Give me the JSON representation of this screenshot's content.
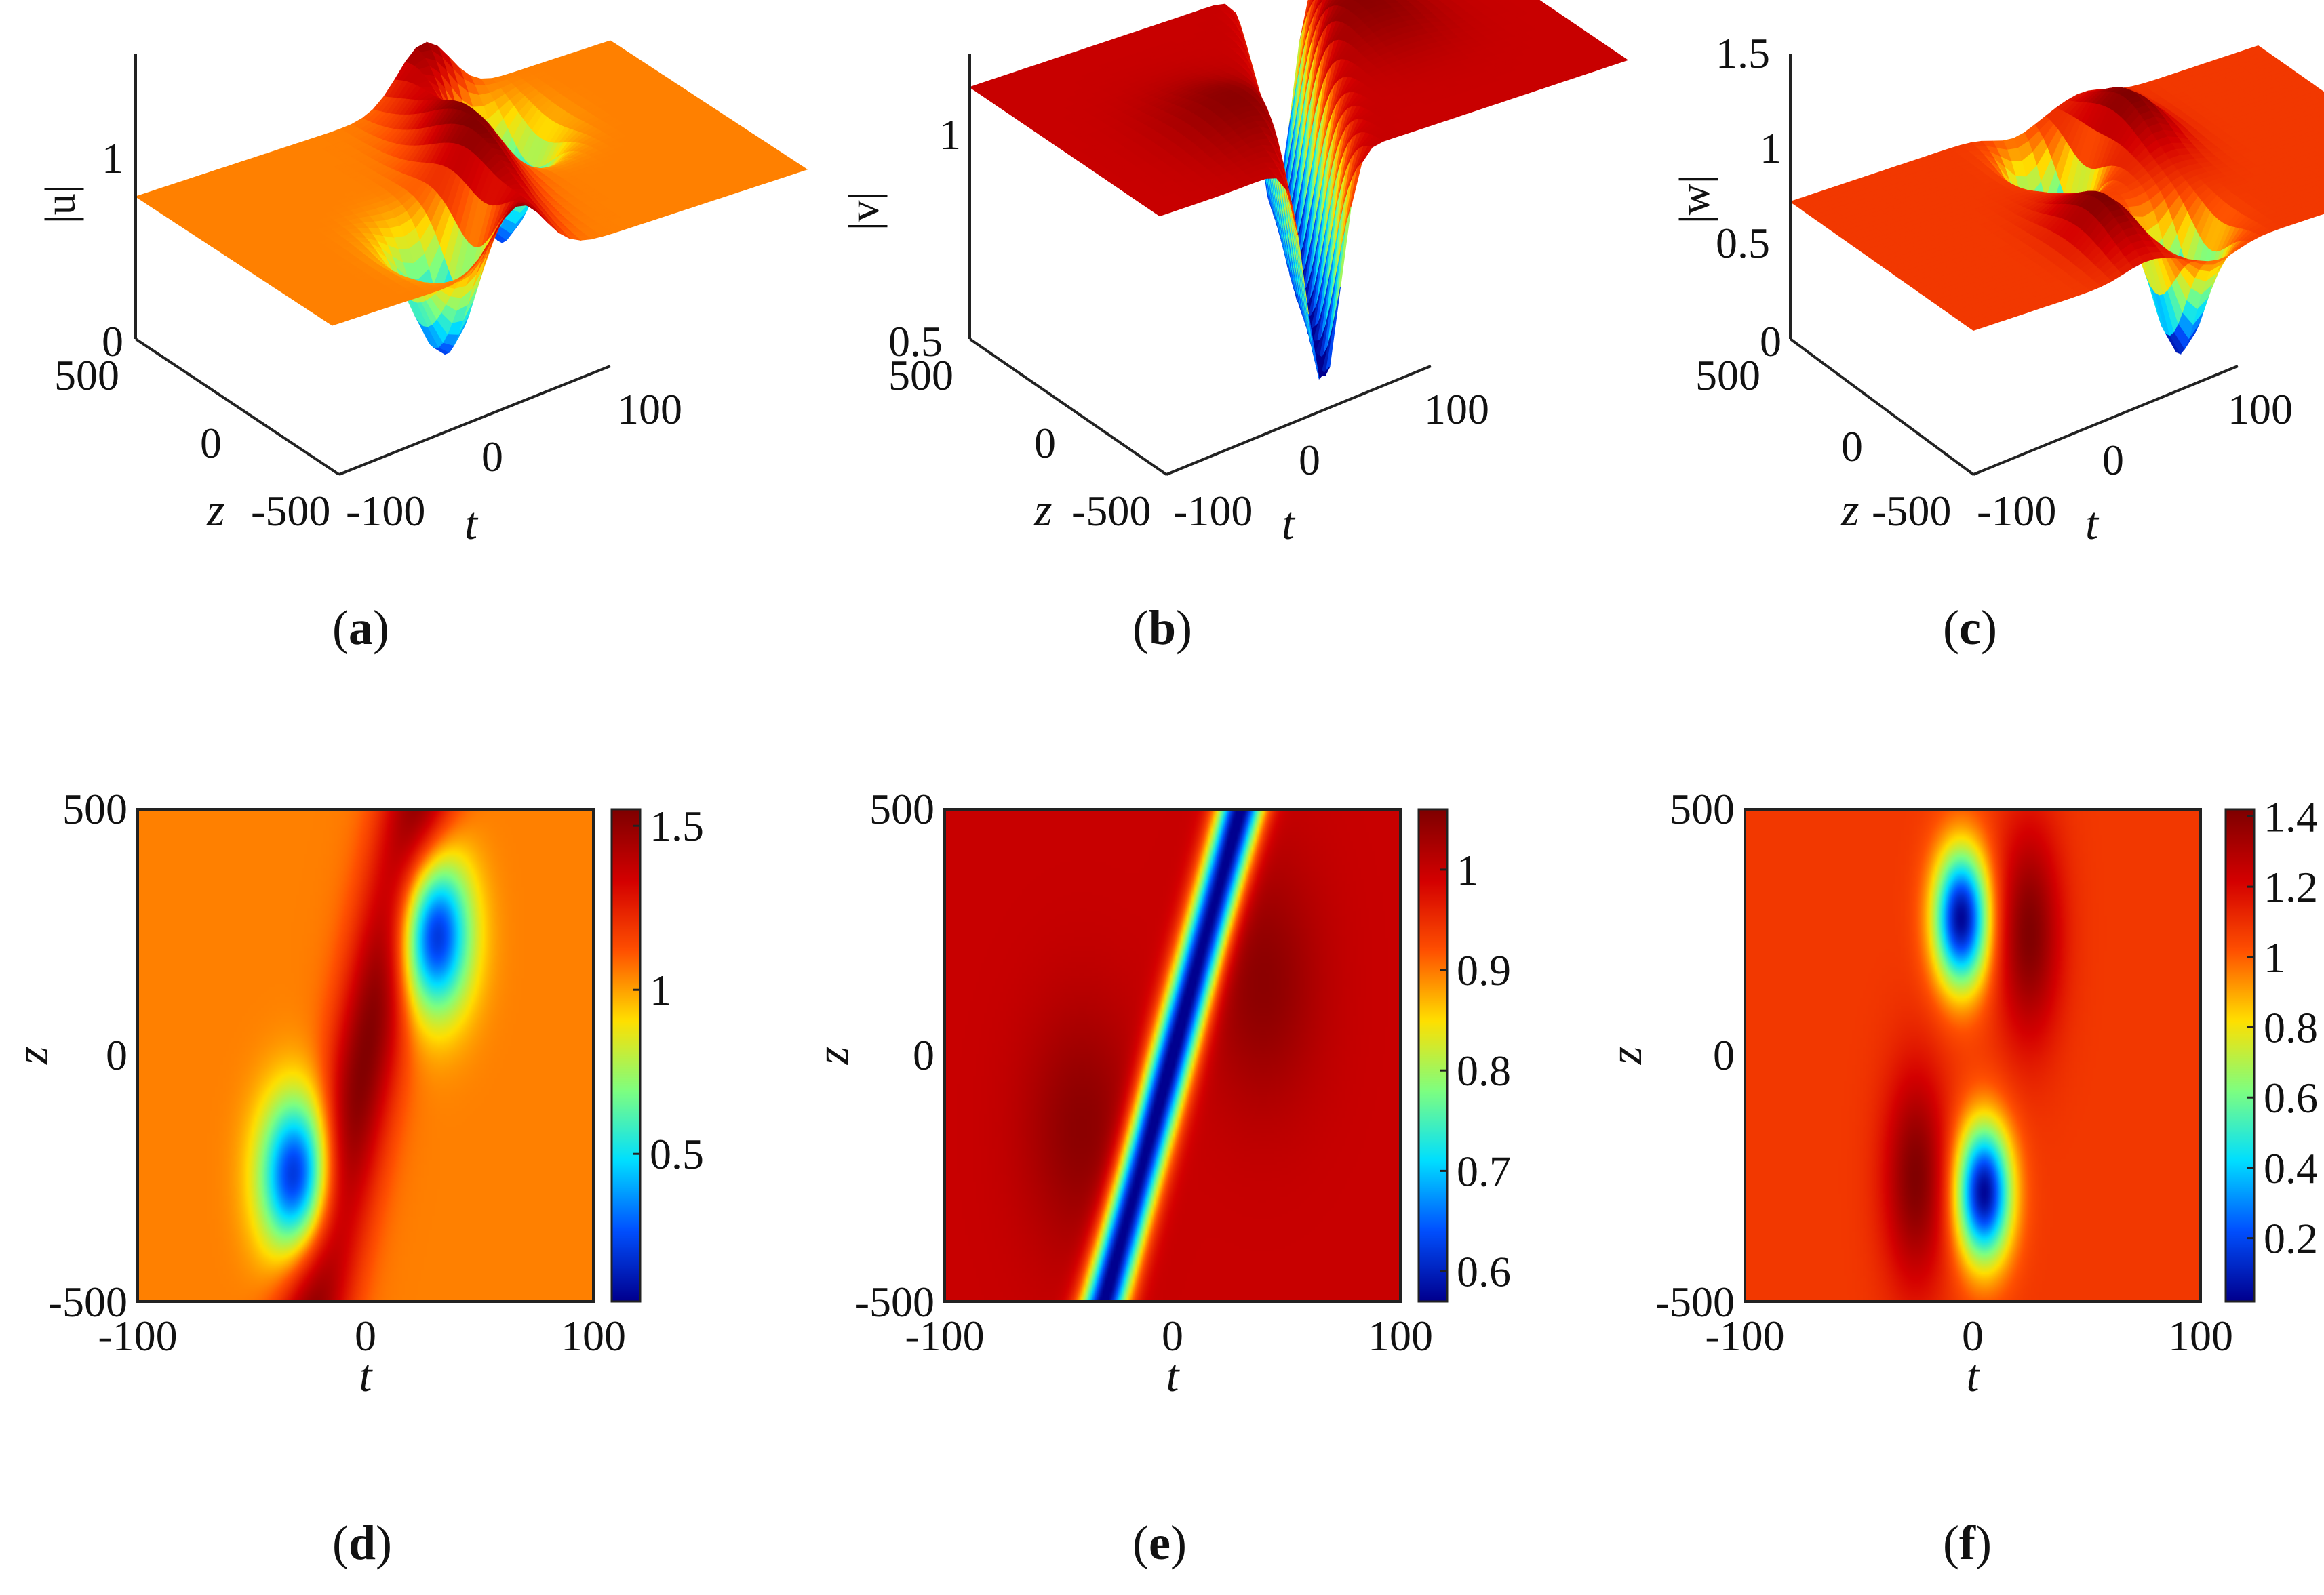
{
  "colormap": [
    "#00008f",
    "#0050ff",
    "#00dfff",
    "#7fff7f",
    "#ffdf00",
    "#ff5000",
    "#d40000",
    "#800000"
  ],
  "chart_data": [
    {
      "panel": "a",
      "type": "surface",
      "caption_letter": "a",
      "zlabel": "|u|",
      "xlabel": "t",
      "ylabel": "z",
      "xlim": [
        -100,
        100
      ],
      "ylim": [
        -500,
        500
      ],
      "zlim": [
        0,
        1.6
      ],
      "xticks": [
        "-100",
        "0",
        "100"
      ],
      "yticks": [
        "-500",
        "0",
        "500"
      ],
      "zticks": [
        "0",
        "1"
      ],
      "background": 1.0,
      "min": 0.05,
      "max": 1.55
    },
    {
      "panel": "b",
      "type": "surface",
      "caption_letter": "b",
      "zlabel": "|v|",
      "xlabel": "t",
      "ylabel": "z",
      "xlim": [
        -100,
        100
      ],
      "ylim": [
        -500,
        500
      ],
      "zlim": [
        0.5,
        1.2
      ],
      "xticks": [
        "-100",
        "0",
        "100"
      ],
      "yticks": [
        "-500",
        "0",
        "500"
      ],
      "zticks": [
        "0.5",
        "1"
      ],
      "background": 1.0,
      "min": 0.57,
      "max": 1.06
    },
    {
      "panel": "c",
      "type": "surface",
      "caption_letter": "c",
      "zlabel": "|w|",
      "xlabel": "t",
      "ylabel": "z",
      "xlim": [
        -100,
        100
      ],
      "ylim": [
        -500,
        500
      ],
      "zlim": [
        0,
        1.6
      ],
      "xticks": [
        "-100",
        "0",
        "100"
      ],
      "yticks": [
        "-500",
        "0",
        "500"
      ],
      "zticks": [
        "0",
        "0.5",
        "1",
        "1.5"
      ],
      "background": 1.0,
      "min": 0.02,
      "max": 1.42
    },
    {
      "panel": "d",
      "type": "heatmap",
      "caption_letter": "d",
      "xlabel": "t",
      "ylabel": "z",
      "xlim": [
        -100,
        100
      ],
      "ylim": [
        -500,
        500
      ],
      "xticks": [
        "-100",
        "0",
        "100"
      ],
      "yticks": [
        "-500",
        "0",
        "500"
      ],
      "colorbar": {
        "min": 0.05,
        "max": 1.55,
        "ticks": [
          0.5,
          1,
          1.5
        ],
        "tick_labels": [
          "0.5",
          "1",
          "1.5"
        ]
      },
      "pattern": "red ridge from lower-left to upper-right through origin; blue trough centered near (t=30, z=250) and (t=-30, z=-250); background ~1.05"
    },
    {
      "panel": "e",
      "type": "heatmap",
      "caption_letter": "e",
      "xlabel": "t",
      "ylabel": "z",
      "xlim": [
        -100,
        100
      ],
      "ylim": [
        -500,
        500
      ],
      "xticks": [
        "-100",
        "0",
        "100"
      ],
      "yticks": [
        "-500",
        "0",
        "500"
      ],
      "colorbar": {
        "min": 0.57,
        "max": 1.06,
        "ticks": [
          0.6,
          0.7,
          0.8,
          0.9,
          1
        ],
        "tick_labels": [
          "0.6",
          "0.7",
          "0.8",
          "0.9",
          "1"
        ]
      },
      "pattern": "blue elongated trough along t = 0.06 z through origin; dark red lobes at (t=-40, z=-150) and (t=40, z=150); background ~1.0"
    },
    {
      "panel": "f",
      "type": "heatmap",
      "caption_letter": "f",
      "xlabel": "t",
      "ylabel": "z",
      "xlim": [
        -100,
        100
      ],
      "ylim": [
        -500,
        500
      ],
      "xticks": [
        "-100",
        "0",
        "100"
      ],
      "yticks": [
        "-500",
        "0",
        "500"
      ],
      "colorbar": {
        "min": 0.02,
        "max": 1.42,
        "ticks": [
          0.2,
          0.4,
          0.6,
          0.8,
          1,
          1.2,
          1.4
        ],
        "tick_labels": [
          "0.2",
          "0.4",
          "0.6",
          "0.8",
          "1",
          "1.2",
          "1.4"
        ]
      },
      "pattern": "blue troughs at (t=-5, z=280) and (t=5, z=-280); dark red ridges at (t=25, z=250) and (t=-25, z=-250); background ~1.1"
    }
  ]
}
